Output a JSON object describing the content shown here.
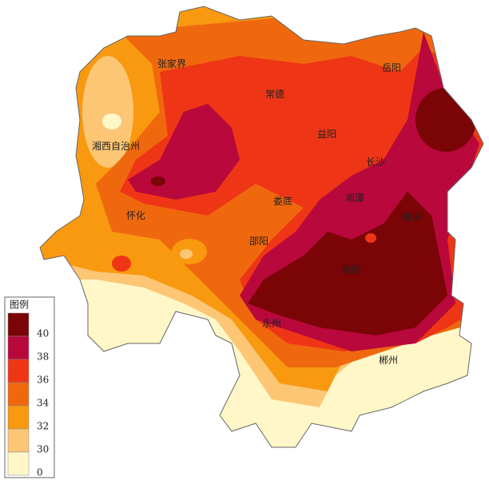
{
  "legend": {
    "title": "图例",
    "levels": [
      {
        "value": 40,
        "color": "#7a0406"
      },
      {
        "value": 38,
        "color": "#b8083c"
      },
      {
        "value": 36,
        "color": "#ee3616"
      },
      {
        "value": 34,
        "color": "#f0680e"
      },
      {
        "value": 32,
        "color": "#f8990f"
      },
      {
        "value": 30,
        "color": "#fcc675"
      },
      {
        "value": 0,
        "color": "#fff7c8"
      }
    ]
  },
  "cities": [
    "张家界",
    "常德",
    "岳阳",
    "湘西自治州",
    "益阳",
    "长沙",
    "娄底",
    "湘潭",
    "株洲",
    "怀化",
    "邵阳",
    "衡阳",
    "永州",
    "郴州"
  ]
}
